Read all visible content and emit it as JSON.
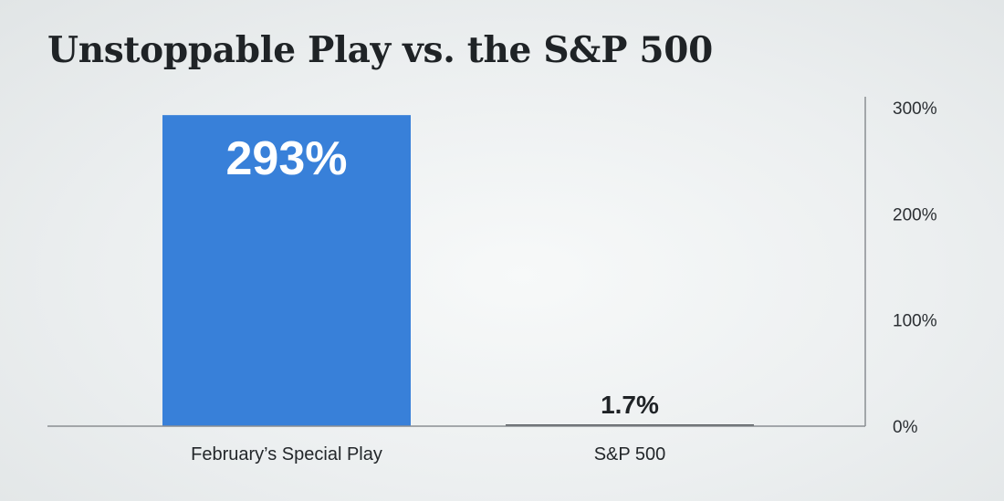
{
  "title": "Unstoppable Play vs. the S&P 500",
  "colors": {
    "primary_bar": "#3880d9",
    "secondary_bar": "#5b5f63",
    "axis": "#8a8e92",
    "text": "#1f2326",
    "value_on_bar": "#ffffff"
  },
  "chart_data": {
    "type": "bar",
    "title": "Unstoppable Play vs. the S&P 500",
    "categories": [
      "February’s Special Play",
      "S&P 500"
    ],
    "values": [
      293,
      1.7
    ],
    "data_labels": [
      "293%",
      "1.7%"
    ],
    "y_ticks": [
      0,
      100,
      200,
      300
    ],
    "y_tick_labels": [
      "0%",
      "100%",
      "200%",
      "300%"
    ],
    "ylim": [
      0,
      300
    ],
    "y_axis_side": "right",
    "grid": false,
    "legend": "none",
    "xlabel": "",
    "ylabel": ""
  }
}
